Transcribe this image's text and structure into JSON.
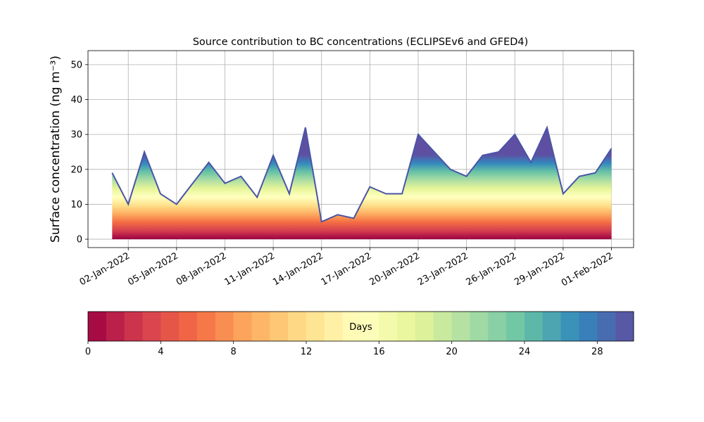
{
  "chart_data": {
    "type": "area",
    "title": "Source contribution to BC concentrations (ECLIPSEv6 and GFED4)",
    "y_label": "Surface concentration (ng m⁻³)",
    "x": [
      "2022-01-01",
      "2022-01-02",
      "2022-01-03",
      "2022-01-04",
      "2022-01-05",
      "2022-01-06",
      "2022-01-07",
      "2022-01-08",
      "2022-01-09",
      "2022-01-10",
      "2022-01-11",
      "2022-01-12",
      "2022-01-13",
      "2022-01-14",
      "2022-01-15",
      "2022-01-16",
      "2022-01-17",
      "2022-01-18",
      "2022-01-19",
      "2022-01-20",
      "2022-01-21",
      "2022-01-22",
      "2022-01-23",
      "2022-01-24",
      "2022-01-25",
      "2022-01-26",
      "2022-01-27",
      "2022-01-28",
      "2022-01-29",
      "2022-01-30",
      "2022-01-31",
      "2022-02-01"
    ],
    "values": [
      19,
      10,
      25,
      13,
      10,
      16,
      22,
      16,
      18,
      12,
      24,
      13,
      32,
      5,
      7,
      6,
      15,
      13,
      13,
      30,
      25,
      20,
      18,
      24,
      25,
      30,
      22,
      32,
      13,
      18,
      19,
      26
    ],
    "line_color": "#4a55a6",
    "xlim": [
      "2021-12-30T12:00",
      "2022-02-02T09:00"
    ],
    "xticks": [
      {
        "value": "2022-01-02",
        "label": "02-Jan-2022"
      },
      {
        "value": "2022-01-05",
        "label": "05-Jan-2022"
      },
      {
        "value": "2022-01-08",
        "label": "08-Jan-2022"
      },
      {
        "value": "2022-01-11",
        "label": "11-Jan-2022"
      },
      {
        "value": "2022-01-14",
        "label": "14-Jan-2022"
      },
      {
        "value": "2022-01-17",
        "label": "17-Jan-2022"
      },
      {
        "value": "2022-01-20",
        "label": "20-Jan-2022"
      },
      {
        "value": "2022-01-23",
        "label": "23-Jan-2022"
      },
      {
        "value": "2022-01-26",
        "label": "26-Jan-2022"
      },
      {
        "value": "2022-01-29",
        "label": "29-Jan-2022"
      },
      {
        "value": "2022-02-01",
        "label": "01-Feb-2022"
      }
    ],
    "ylim": [
      -2.4,
      54
    ],
    "yticks": [
      0,
      10,
      20,
      30,
      40,
      50
    ],
    "grid": true,
    "colorbar": {
      "label": "Days",
      "lim": [
        0,
        30
      ],
      "ticks": [
        0,
        4,
        8,
        12,
        16,
        20,
        24,
        28
      ],
      "colormap": [
        "#9e0142",
        "#d53e4f",
        "#f46d43",
        "#fdae61",
        "#fee08b",
        "#ffffbf",
        "#e6f598",
        "#abdda4",
        "#66c2a5",
        "#3288bd",
        "#5e4fa2"
      ]
    }
  }
}
